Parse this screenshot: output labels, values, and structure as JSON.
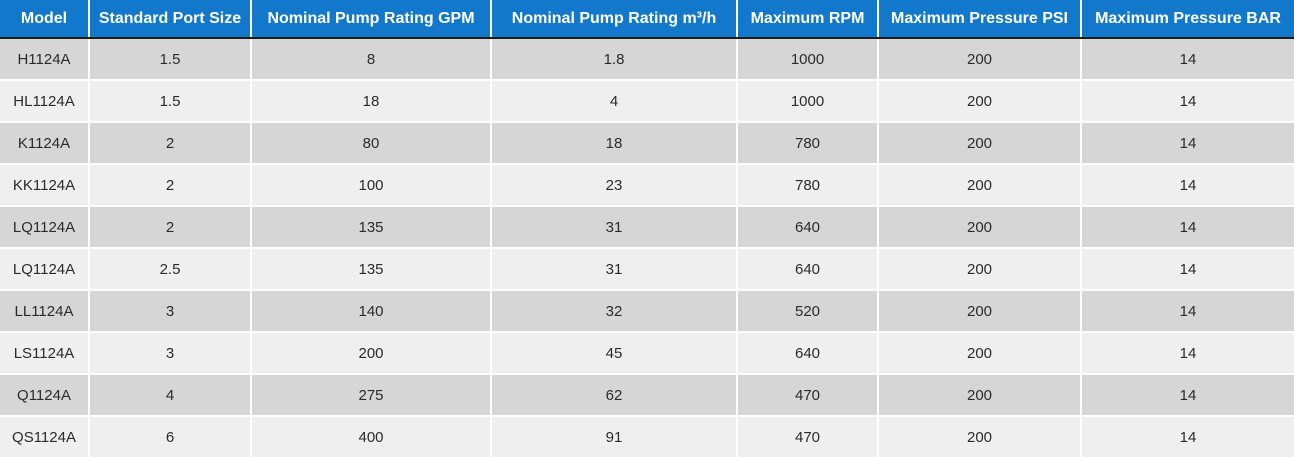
{
  "chart_data": {
    "type": "table",
    "columns": [
      "Model",
      "Standard Port Size",
      "Nominal Pump Rating GPM",
      "Nominal Pump Rating m³/h",
      "Maximum RPM",
      "Maximum Pressure PSI",
      "Maximum Pressure BAR"
    ],
    "rows": [
      [
        "H1124A",
        "1.5",
        "8",
        "1.8",
        "1000",
        "200",
        "14"
      ],
      [
        "HL1124A",
        "1.5",
        "18",
        "4",
        "1000",
        "200",
        "14"
      ],
      [
        "K1124A",
        "2",
        "80",
        "18",
        "780",
        "200",
        "14"
      ],
      [
        "KK1124A",
        "2",
        "100",
        "23",
        "780",
        "200",
        "14"
      ],
      [
        "LQ1124A",
        "2",
        "135",
        "31",
        "640",
        "200",
        "14"
      ],
      [
        "LQ1124A",
        "2.5",
        "135",
        "31",
        "640",
        "200",
        "14"
      ],
      [
        "LL1124A",
        "3",
        "140",
        "32",
        "520",
        "200",
        "14"
      ],
      [
        "LS1124A",
        "3",
        "200",
        "45",
        "640",
        "200",
        "14"
      ],
      [
        "Q1124A",
        "4",
        "275",
        "62",
        "470",
        "200",
        "14"
      ],
      [
        "QS1124A",
        "6",
        "400",
        "91",
        "470",
        "200",
        "14"
      ]
    ]
  },
  "colors": {
    "header_bg": "#1278cc",
    "header_text": "#ffffff",
    "row_odd_bg": "#d6d6d6",
    "row_even_bg": "#efefef",
    "body_text": "#2b2b2b",
    "divider": "#1c1c1c",
    "gap": "#ffffff"
  }
}
